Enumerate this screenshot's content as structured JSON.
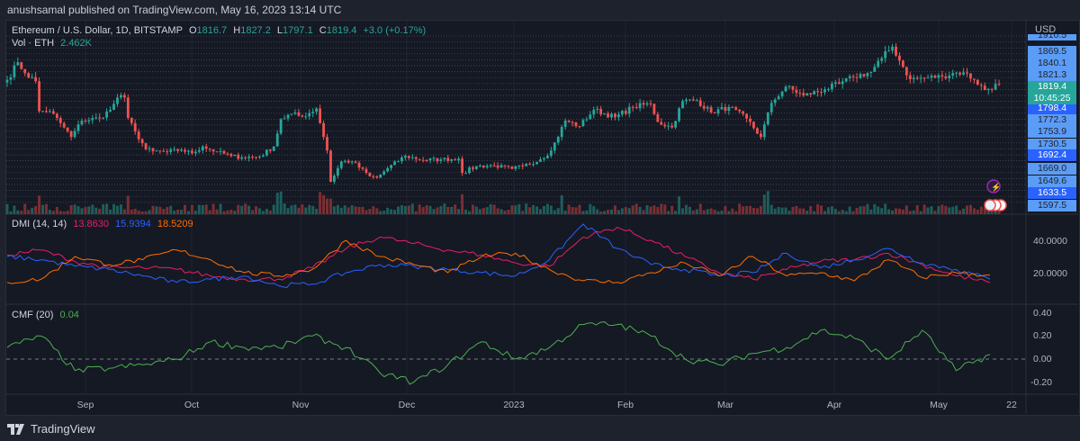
{
  "publisher_line": "anushsamal published on TradingView.com, May 16, 2023 13:14 UTC",
  "legend": {
    "symbol": "Ethereum / U.S. Dollar, 1D, BITSTAMP",
    "o_label": "O",
    "o": "1816.7",
    "h_label": "H",
    "h": "1827.2",
    "l_label": "L",
    "l": "1797.1",
    "c_label": "C",
    "c": "1819.4",
    "change": "+3.0 (+0.17%)",
    "vol_label": "Vol · ETH",
    "vol": "2.462K"
  },
  "price_axis": {
    "currency": "USD",
    "levels": [
      "1910.5",
      "1869.5",
      "1840.1",
      "1821.3",
      "1798.4",
      "1772.3",
      "1753.9",
      "1730.5",
      "1692.4",
      "1669.0",
      "1649.6",
      "1633.5",
      "1597.5"
    ],
    "highlighted": [
      "1798.4",
      "1692.4",
      "1633.5"
    ],
    "current_price": "1819.4",
    "countdown": "10:45:25"
  },
  "dmi": {
    "label": "DMI (14, 14)",
    "adx": "13.8630",
    "plus_di": "15.9394",
    "minus_di": "18.5209",
    "ticks": [
      "40.0000",
      "20.0000"
    ]
  },
  "cmf": {
    "label": "CMF (20)",
    "value": "0.04",
    "ticks": [
      "0.40",
      "0.20",
      "0.00",
      "-0.20"
    ]
  },
  "time_axis": [
    "Sep",
    "Oct",
    "Nov",
    "Dec",
    "2023",
    "Feb",
    "Mar",
    "Apr",
    "May",
    "22"
  ],
  "footer": {
    "brand": "TradingView"
  },
  "colors": {
    "up": "#26a69a",
    "down": "#ef5350",
    "adx": "#e91e63",
    "plus_di": "#2962ff",
    "minus_di": "#ff6d00",
    "cmf": "#4caf50",
    "price_label": "#5b9cf6",
    "price_label_dark": "#2962ff"
  },
  "chart_data": [
    {
      "type": "candlestick",
      "title": "Ethereum / U.S. Dollar, 1D, BITSTAMP",
      "x_range": [
        "2022-08-10",
        "2023-05-16"
      ],
      "key_closes": [
        [
          "2022-08-10",
          1850
        ],
        [
          "2022-08-13",
          1980
        ],
        [
          "2022-08-15",
          1900
        ],
        [
          "2022-08-18",
          1840
        ],
        [
          "2022-08-19",
          1620
        ],
        [
          "2022-08-22",
          1620
        ],
        [
          "2022-08-26",
          1500
        ],
        [
          "2022-08-28",
          1430
        ],
        [
          "2022-08-31",
          1550
        ],
        [
          "2022-09-05",
          1570
        ],
        [
          "2022-09-08",
          1630
        ],
        [
          "2022-09-10",
          1720
        ],
        [
          "2022-09-12",
          1720
        ],
        [
          "2022-09-13",
          1570
        ],
        [
          "2022-09-15",
          1470
        ],
        [
          "2022-09-18",
          1340
        ],
        [
          "2022-09-20",
          1325
        ],
        [
          "2022-09-24",
          1320
        ],
        [
          "2022-09-28",
          1335
        ],
        [
          "2022-10-01",
          1310
        ],
        [
          "2022-10-04",
          1360
        ],
        [
          "2022-10-08",
          1320
        ],
        [
          "2022-10-12",
          1290
        ],
        [
          "2022-10-15",
          1280
        ],
        [
          "2022-10-20",
          1285
        ],
        [
          "2022-10-24",
          1360
        ],
        [
          "2022-10-26",
          1560
        ],
        [
          "2022-10-29",
          1600
        ],
        [
          "2022-11-01",
          1580
        ],
        [
          "2022-11-05",
          1640
        ],
        [
          "2022-11-08",
          1330
        ],
        [
          "2022-11-09",
          1100
        ],
        [
          "2022-11-12",
          1250
        ],
        [
          "2022-11-15",
          1250
        ],
        [
          "2022-11-20",
          1140
        ],
        [
          "2022-11-22",
          1130
        ],
        [
          "2022-11-25",
          1200
        ],
        [
          "2022-11-30",
          1290
        ],
        [
          "2022-12-05",
          1260
        ],
        [
          "2022-12-10",
          1265
        ],
        [
          "2022-12-15",
          1270
        ],
        [
          "2022-12-16",
          1165
        ],
        [
          "2022-12-20",
          1215
        ],
        [
          "2022-12-25",
          1220
        ],
        [
          "2022-12-30",
          1195
        ],
        [
          "2023-01-02",
          1215
        ],
        [
          "2023-01-07",
          1265
        ],
        [
          "2023-01-10",
          1330
        ],
        [
          "2023-01-14",
          1550
        ],
        [
          "2023-01-18",
          1510
        ],
        [
          "2023-01-22",
          1630
        ],
        [
          "2023-01-28",
          1575
        ],
        [
          "2023-02-02",
          1650
        ],
        [
          "2023-02-07",
          1675
        ],
        [
          "2023-02-09",
          1540
        ],
        [
          "2023-02-13",
          1500
        ],
        [
          "2023-02-16",
          1695
        ],
        [
          "2023-02-20",
          1700
        ],
        [
          "2023-02-24",
          1610
        ],
        [
          "2023-03-01",
          1650
        ],
        [
          "2023-03-06",
          1565
        ],
        [
          "2023-03-10",
          1430
        ],
        [
          "2023-03-13",
          1680
        ],
        [
          "2023-03-17",
          1800
        ],
        [
          "2023-03-22",
          1735
        ],
        [
          "2023-03-28",
          1780
        ],
        [
          "2023-04-01",
          1820
        ],
        [
          "2023-04-05",
          1870
        ],
        [
          "2023-04-10",
          1910
        ],
        [
          "2023-04-13",
          2010
        ],
        [
          "2023-04-16",
          2095
        ],
        [
          "2023-04-19",
          1945
        ],
        [
          "2023-04-21",
          1855
        ],
        [
          "2023-04-25",
          1865
        ],
        [
          "2023-04-30",
          1875
        ],
        [
          "2023-05-03",
          1900
        ],
        [
          "2023-05-06",
          1905
        ],
        [
          "2023-05-09",
          1850
        ],
        [
          "2023-05-12",
          1775
        ],
        [
          "2023-05-16",
          1819.4
        ]
      ],
      "volume_last": "2.462K"
    },
    {
      "type": "line",
      "title": "DMI (14, 14)",
      "x_range": [
        "2022-08-10",
        "2023-05-16"
      ],
      "ylim": [
        10,
        50
      ],
      "series": [
        {
          "name": "ADX",
          "values": [
            31,
            34,
            27,
            23,
            23,
            22,
            18,
            16,
            16,
            23,
            35,
            42,
            38,
            34,
            31,
            26,
            24,
            42,
            48,
            40,
            30,
            20,
            16,
            22,
            27,
            28,
            32,
            25,
            18,
            13.863
          ]
        },
        {
          "name": "+DI",
          "values": [
            30,
            28,
            24,
            22,
            18,
            14,
            16,
            18,
            12,
            13,
            20,
            25,
            24,
            22,
            20,
            18,
            28,
            50,
            35,
            25,
            22,
            18,
            20,
            32,
            23,
            28,
            35,
            26,
            22,
            15.9394
          ]
        },
        {
          "name": "-DI",
          "values": [
            14,
            16,
            30,
            25,
            28,
            34,
            28,
            20,
            18,
            22,
            40,
            30,
            25,
            20,
            30,
            32,
            22,
            15,
            14,
            20,
            26,
            18,
            30,
            18,
            20,
            15,
            28,
            17,
            20,
            18.5209
          ]
        }
      ]
    },
    {
      "type": "line",
      "title": "CMF (20)",
      "x_range": [
        "2022-08-10",
        "2023-05-16"
      ],
      "ylim": [
        -0.3,
        0.4
      ],
      "series": [
        {
          "name": "CMF",
          "values": [
            0.1,
            0.2,
            -0.1,
            -0.08,
            -0.05,
            0.0,
            0.15,
            0.1,
            0.1,
            0.2,
            0.1,
            -0.12,
            -0.2,
            -0.05,
            0.15,
            0.0,
            0.1,
            0.3,
            0.3,
            0.2,
            0.0,
            -0.05,
            0.05,
            0.1,
            0.25,
            0.18,
            0.0,
            0.25,
            -0.1,
            0.04
          ]
        }
      ]
    }
  ]
}
